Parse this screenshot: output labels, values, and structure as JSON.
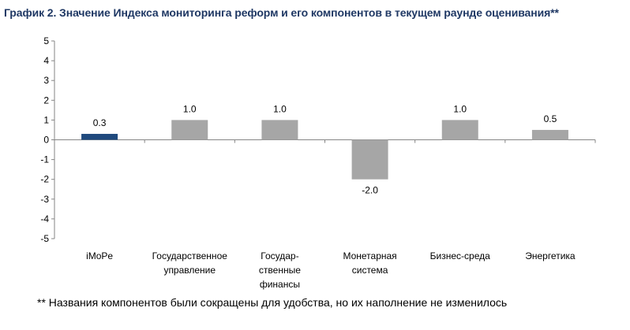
{
  "title": "График 2. Значение Индекса мониторинга реформ и его компонентов в текущем раунде оценивания**",
  "footnote": "** Названия компонентов были сокращены для удобства, но их наполнение не изменилось",
  "chart_data": {
    "type": "bar",
    "title": "",
    "xlabel": "",
    "ylabel": "",
    "ylim": [
      -5,
      5
    ],
    "yticks": [
      -5,
      -4,
      -3,
      -2,
      -1,
      0,
      1,
      2,
      3,
      4,
      5
    ],
    "grid": false,
    "legend": "none",
    "categories": [
      [
        "iMoPe"
      ],
      [
        "Государственное",
        "управление"
      ],
      [
        "Государ-",
        "ственные",
        "финансы"
      ],
      [
        "Монетарная",
        "система"
      ],
      [
        "Бизнес-среда"
      ],
      [
        "Энергетика"
      ]
    ],
    "values": [
      0.3,
      1.0,
      1.0,
      -2.0,
      1.0,
      0.5
    ],
    "data_labels": [
      "0.3",
      "1.0",
      "1.0",
      "-2.0",
      "1.0",
      "0.5"
    ],
    "bar_colors": [
      "#1f497d",
      "#a6a6a6",
      "#a6a6a6",
      "#a6a6a6",
      "#a6a6a6",
      "#a6a6a6"
    ]
  }
}
